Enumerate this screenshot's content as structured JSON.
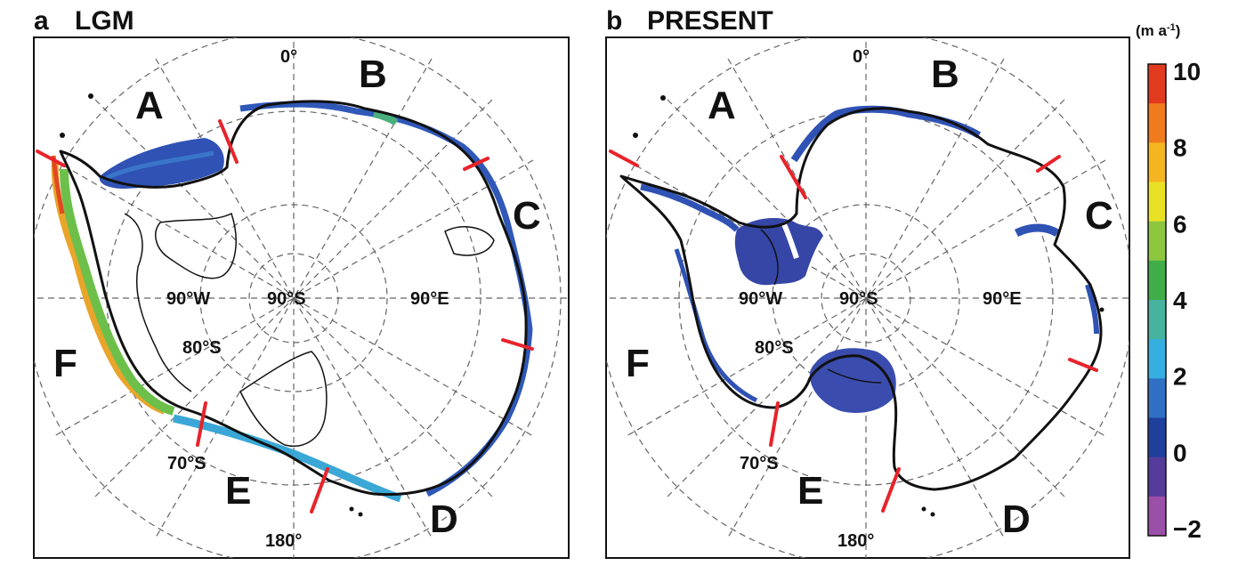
{
  "panels": [
    {
      "id": "a",
      "letter": "a",
      "title": "LGM",
      "sectors": [
        "A",
        "B",
        "C",
        "D",
        "E",
        "F"
      ],
      "grid_labels": {
        "lon_0": "0°",
        "lon_180": "180°",
        "lon_90w": "90°W",
        "lon_90e": "90°E",
        "pole": "90°S",
        "lat_80": "80°S",
        "lat_70": "70°S"
      }
    },
    {
      "id": "b",
      "letter": "b",
      "title": "PRESENT",
      "sectors": [
        "A",
        "B",
        "C",
        "D",
        "E",
        "F"
      ],
      "grid_labels": {
        "lon_0": "0°",
        "lon_180": "180°",
        "lon_90w": "90°W",
        "lon_90e": "90°E",
        "pole": "90°S",
        "lat_80": "80°S",
        "lat_70": "70°S"
      }
    }
  ],
  "colorbar": {
    "unit_main": "(m a",
    "unit_sup": "-1",
    "unit_close": ")",
    "ticks": [
      "10",
      "8",
      "6",
      "4",
      "2",
      "0",
      "−2"
    ],
    "colors": [
      "#e23a1e",
      "#f07a1c",
      "#f4b521",
      "#e9e224",
      "#8dc63f",
      "#3fae49",
      "#46b39e",
      "#35aee0",
      "#2f6fc4",
      "#1f3f9c",
      "#553c9a",
      "#9a4fa8"
    ]
  },
  "colors": {
    "sector_divider": "#e8232a",
    "grid_line": "#555555",
    "coast_line": "#111111",
    "melt_dark": "#2b48a8",
    "melt_mid": "#3a6fc8"
  }
}
